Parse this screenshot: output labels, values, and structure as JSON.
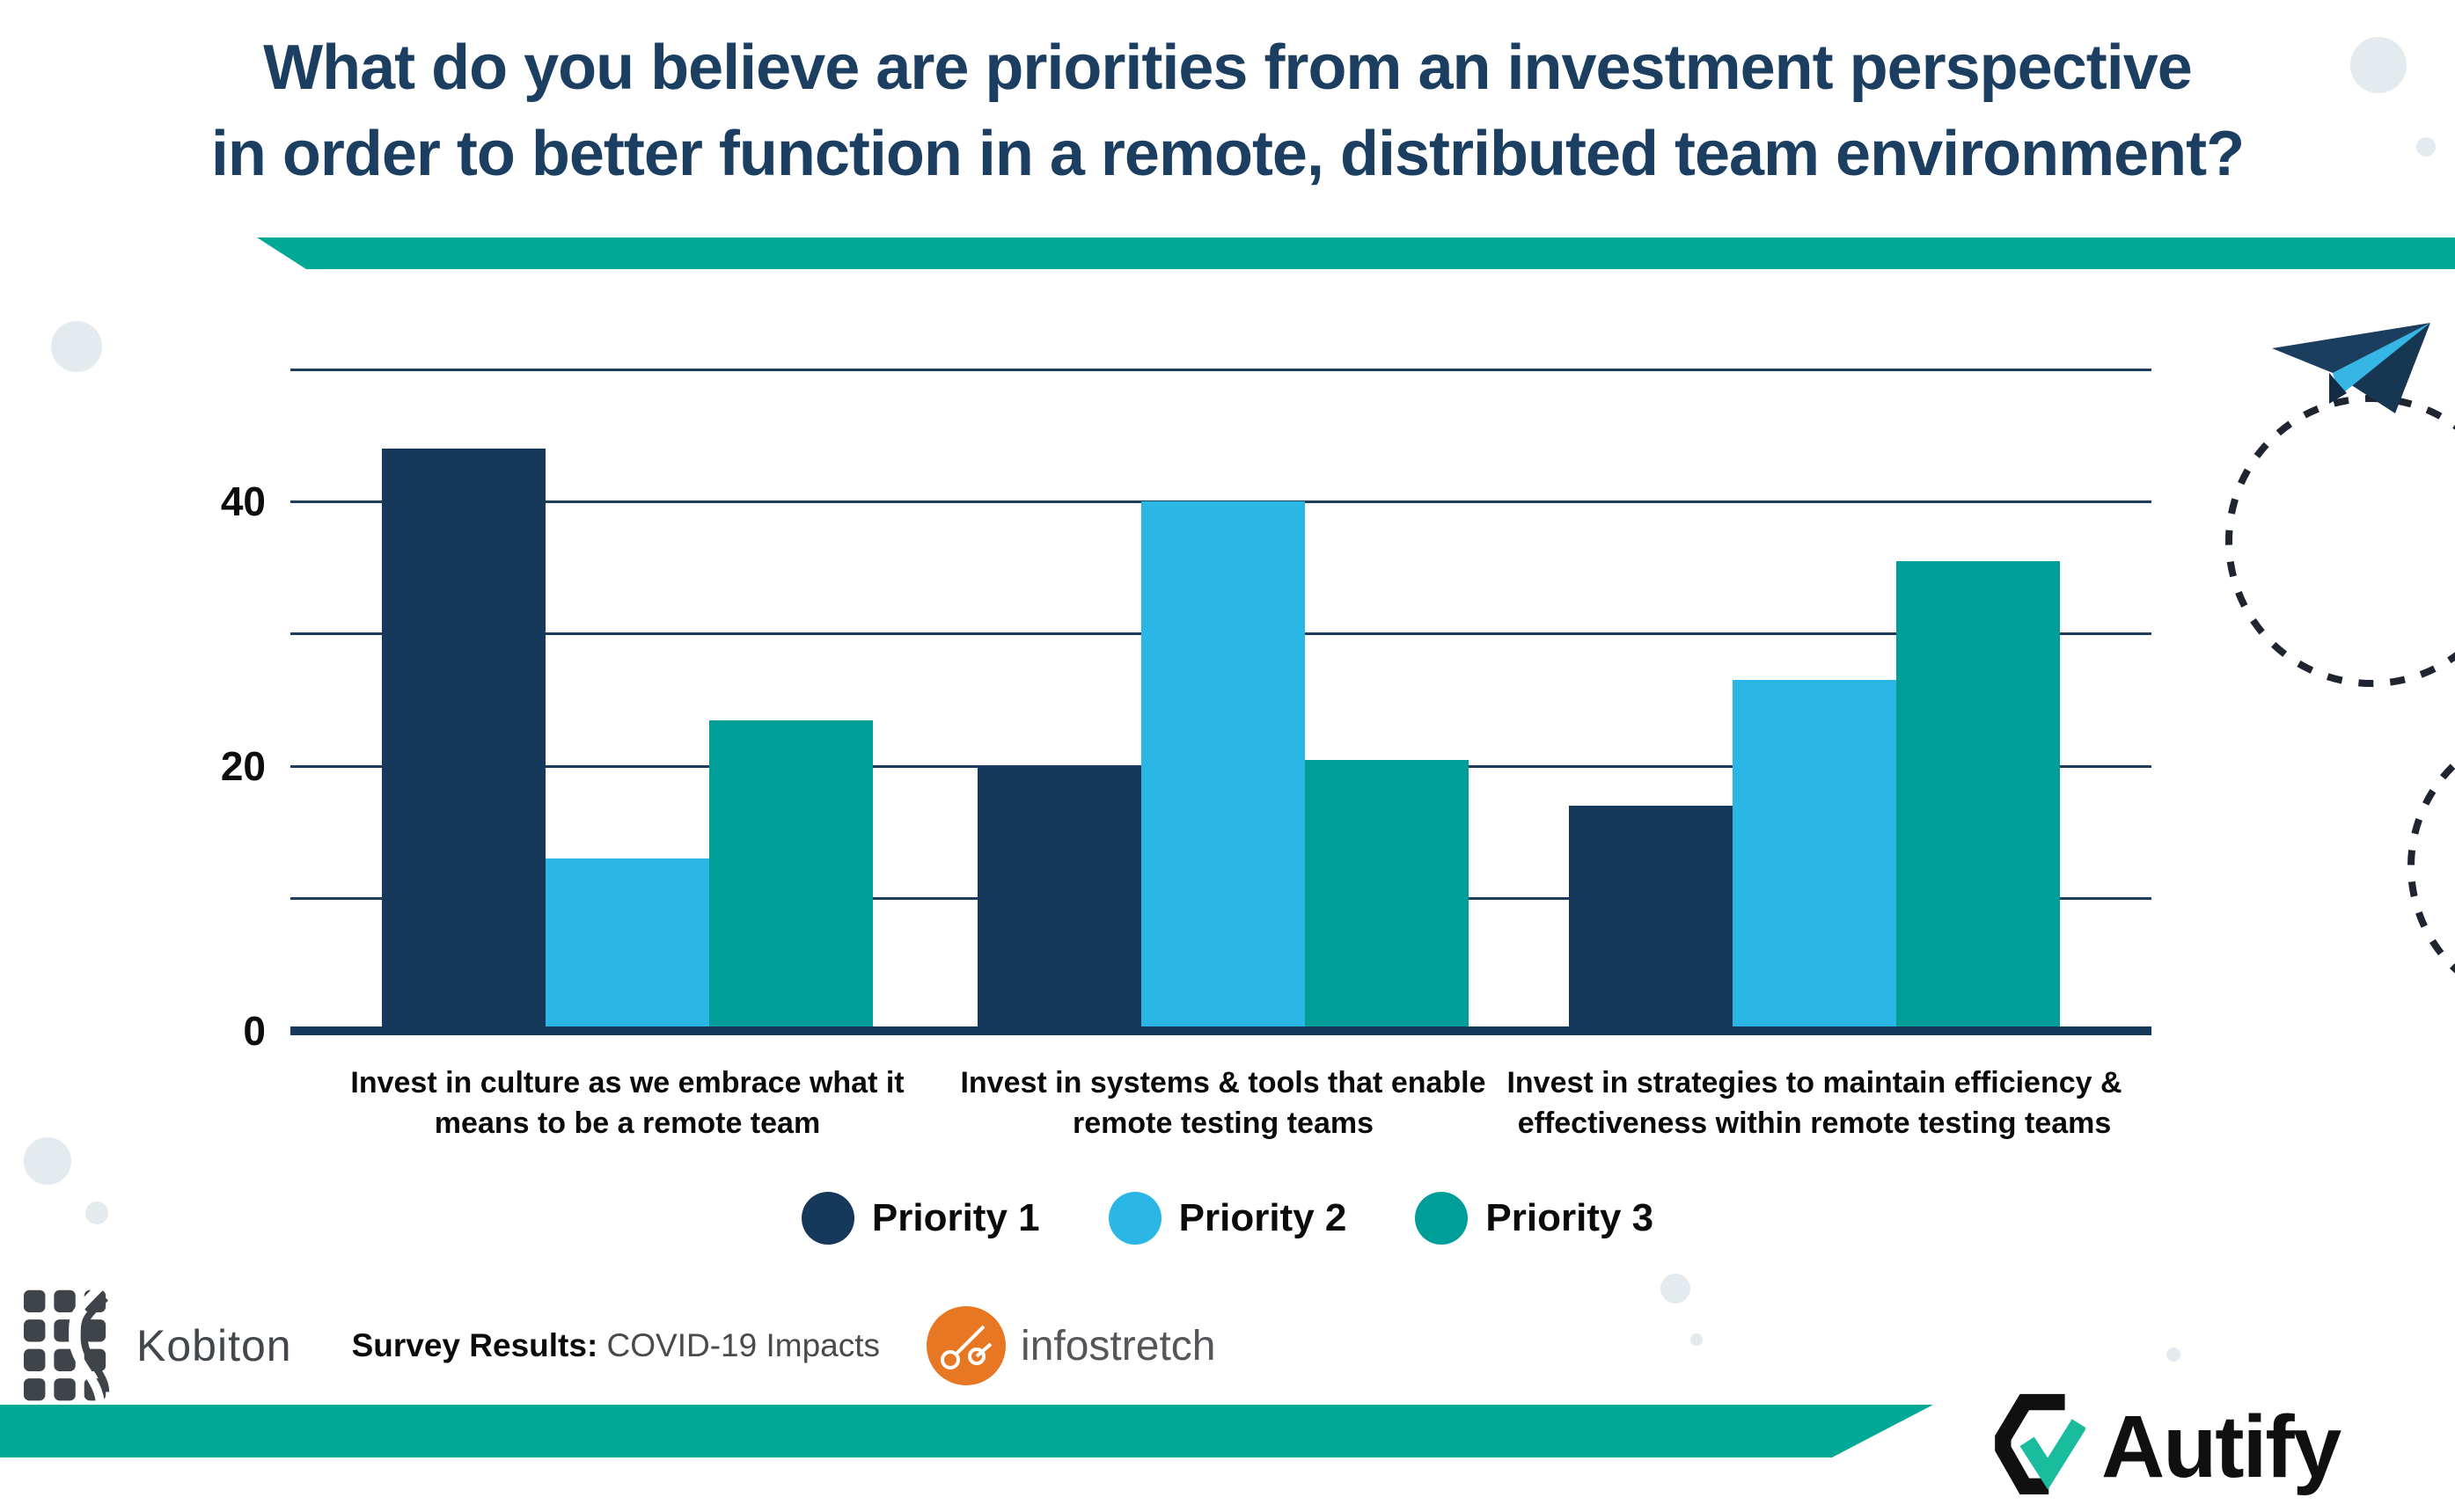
{
  "title": {
    "line1": "What do you believe are priorities from an investment perspective",
    "line2": "in order to better function in a remote, distributed team environment?"
  },
  "chart_data": {
    "type": "bar",
    "categories": [
      "Invest in culture as we embrace what it means to be a remote team",
      "Invest in systems & tools that enable remote testing teams",
      "Invest in strategies to maintain efficiency & effectiveness within remote testing teams"
    ],
    "series": [
      {
        "name": "Priority 1",
        "color": "#16395B",
        "values": [
          44,
          20,
          17
        ]
      },
      {
        "name": "Priority 2",
        "color": "#2BB7E5",
        "values": [
          13,
          40,
          26.5
        ]
      },
      {
        "name": "Priority 3",
        "color": "#009E98",
        "values": [
          23.5,
          20.5,
          35.5
        ]
      }
    ],
    "title": "",
    "xlabel": "",
    "ylabel": "",
    "ylim": [
      0,
      50
    ],
    "gridline_step": 10,
    "grid": "horizontal",
    "yticks": [
      {
        "value": 0,
        "label": "0"
      },
      {
        "value": 20,
        "label": "20"
      },
      {
        "value": 40,
        "label": "40"
      }
    ],
    "legend_position": "bottom-center"
  },
  "footer": {
    "kobiton_label": "Kobiton",
    "survey_label_bold": "Survey Results:",
    "survey_label_rest": " COVID-19 Impacts",
    "infostretch_label": "infostretch",
    "autify_label": "Autify"
  },
  "colors": {
    "banner_teal": "#00A996",
    "title_navy": "#1C3E61",
    "gridline_navy": "#1E3D5E",
    "axis_navy": "#16395B",
    "bar_priority1": "#16395B",
    "bar_priority2": "#2BB7E5",
    "bar_priority3": "#009E98",
    "pale_circle": "#E3EBEF",
    "dashed_line": "#1E2430",
    "plane_navy": "#1C3E5E",
    "plane_blue": "#35B6E4",
    "kobiton_gray": "#42474D",
    "infostretch_orange": "#E87723",
    "autify_black": "#101010",
    "autify_teal": "#19BC9C"
  }
}
